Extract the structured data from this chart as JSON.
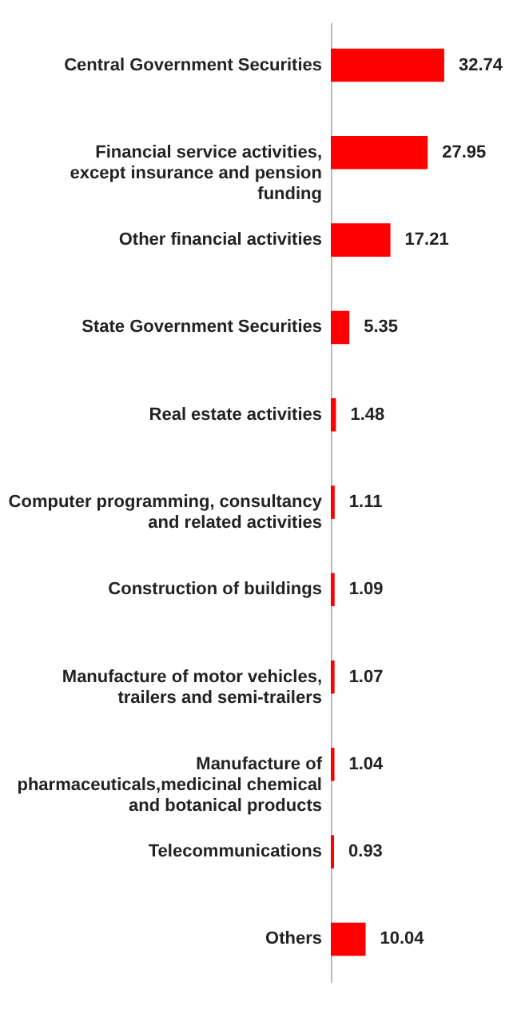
{
  "chart_data": {
    "type": "bar",
    "orientation": "horizontal",
    "data_labels": true,
    "categories": [
      "Central Government Securities",
      "Financial service activities, except insurance and pension funding",
      "Other financial activities",
      "State Government Securities",
      "Real estate activities",
      "Computer programming, consultancy and related activities",
      "Construction of buildings",
      "Manufacture of motor vehicles, trailers and semi-trailers",
      "Manufacture of pharmaceuticals,medicinal chemical and botanical products",
      "Telecommunications",
      "Others"
    ],
    "values": [
      32.74,
      27.95,
      17.21,
      5.35,
      1.48,
      1.11,
      1.09,
      1.07,
      1.04,
      0.93,
      10.04
    ],
    "color": "#ff0000"
  }
}
